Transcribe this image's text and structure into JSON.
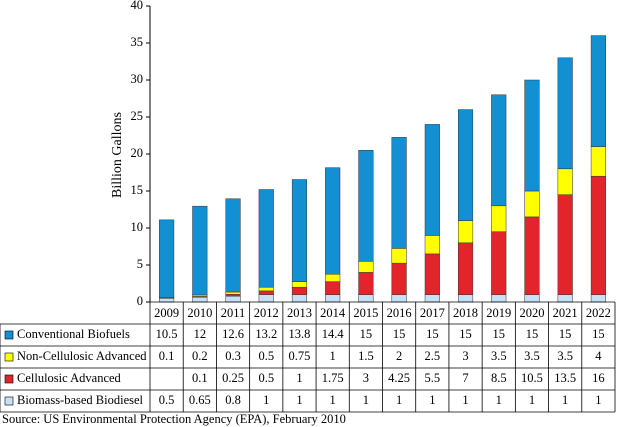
{
  "chart_data": {
    "type": "stacked-bar-table",
    "y_label": "Billion Gallons",
    "source": "Source: US Environmental Protection Agency (EPA), February 2010",
    "categories": [
      "2009",
      "2010",
      "2011",
      "2012",
      "2013",
      "2014",
      "2015",
      "2016",
      "2017",
      "2018",
      "2019",
      "2020",
      "2021",
      "2022"
    ],
    "series": [
      {
        "name": "Conventional Biofuels",
        "color": "#1390d2",
        "values": [
          10.5,
          12,
          12.6,
          13.2,
          13.8,
          14.4,
          15,
          15,
          15,
          15,
          15,
          15,
          15,
          15
        ]
      },
      {
        "name": "Non-Cellulosic Advanced",
        "color": "#ffff00",
        "values": [
          0.1,
          0.2,
          0.3,
          0.5,
          0.75,
          1,
          1.5,
          2,
          2.5,
          3,
          3.5,
          3.5,
          3.5,
          4
        ]
      },
      {
        "name": "Cellulosic Advanced",
        "color": "#e3242b",
        "values": [
          null,
          0.1,
          0.25,
          0.5,
          1,
          1.75,
          3,
          4.25,
          5.5,
          7,
          8.5,
          10.5,
          13.5,
          16
        ]
      },
      {
        "name": "Biomass-based Biodiesel",
        "color": "#c6e1f6",
        "values": [
          0.5,
          0.65,
          0.8,
          1,
          1,
          1,
          1,
          1,
          1,
          1,
          1,
          1,
          1,
          1
        ]
      }
    ],
    "ylim": [
      0,
      40
    ],
    "yticks": [
      0,
      5,
      10,
      15,
      20,
      25,
      30,
      35,
      40
    ]
  }
}
